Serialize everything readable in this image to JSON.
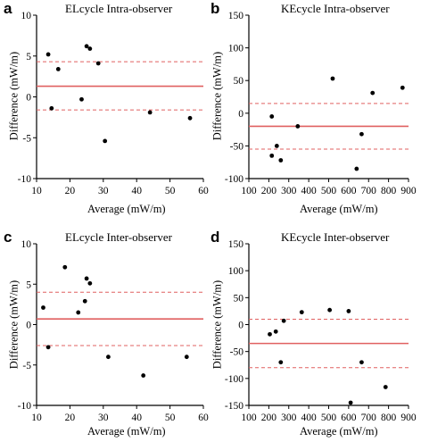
{
  "panels": [
    {
      "letter": "a",
      "title": "ELcycle Intra-observer",
      "xlabel": "Average (mW/m)",
      "ylabel": "Difference (mW/m)"
    },
    {
      "letter": "b",
      "title": "KEcycle Intra-observer",
      "xlabel": "Average (mW/m)",
      "ylabel": "Difference (mW/m)"
    },
    {
      "letter": "c",
      "title": "ELcycle Inter-observer",
      "xlabel": "Average (mW/m)",
      "ylabel": "Difference (mW/m)"
    },
    {
      "letter": "d",
      "title": "KEcycle Inter-observer",
      "xlabel": "Average (mW/m)",
      "ylabel": "Difference (mW/m)"
    }
  ],
  "colors": {
    "points": "#000000",
    "mean_line": "#e06060",
    "limit_line": "#e06060",
    "axis": "#000000"
  },
  "chart_data": [
    {
      "type": "scatter",
      "title": "ELcycle Intra-observer",
      "xlabel": "Average (mW/m)",
      "ylabel": "Difference (mW/m)",
      "xlim": [
        10,
        60
      ],
      "ylim": [
        -10,
        10
      ],
      "xticks": [
        10,
        20,
        30,
        40,
        50,
        60
      ],
      "yticks": [
        -10,
        -5,
        0,
        5,
        10
      ],
      "mean": 1.3,
      "upper_limit": 4.3,
      "lower_limit": -1.6,
      "points": [
        [
          13.5,
          5.2
        ],
        [
          14.5,
          -1.4
        ],
        [
          16.5,
          3.4
        ],
        [
          23.5,
          -0.3
        ],
        [
          25,
          6.2
        ],
        [
          26,
          5.9
        ],
        [
          28.5,
          4.1
        ],
        [
          30.5,
          -5.4
        ],
        [
          44,
          -1.9
        ],
        [
          56,
          -2.6
        ]
      ]
    },
    {
      "type": "scatter",
      "title": "KEcycle Intra-observer",
      "xlabel": "Average (mW/m)",
      "ylabel": "Difference (mW/m)",
      "xlim": [
        100,
        900
      ],
      "ylim": [
        -100,
        150
      ],
      "xticks": [
        100,
        200,
        300,
        400,
        500,
        600,
        700,
        800,
        900
      ],
      "yticks": [
        -100,
        -50,
        0,
        50,
        100,
        150
      ],
      "mean": -20,
      "upper_limit": 15,
      "lower_limit": -55,
      "points": [
        [
          215,
          -5
        ],
        [
          215,
          -65
        ],
        [
          240,
          -50
        ],
        [
          260,
          -72
        ],
        [
          345,
          -20
        ],
        [
          520,
          53
        ],
        [
          640,
          -85
        ],
        [
          665,
          -32
        ],
        [
          720,
          31
        ],
        [
          870,
          39
        ]
      ]
    },
    {
      "type": "scatter",
      "title": "ELcycle Inter-observer",
      "xlabel": "Average (mW/m)",
      "ylabel": "Difference (mW/m)",
      "xlim": [
        10,
        60
      ],
      "ylim": [
        -10,
        10
      ],
      "xticks": [
        10,
        20,
        30,
        40,
        50,
        60
      ],
      "yticks": [
        -10,
        -5,
        0,
        5,
        10
      ],
      "mean": 0.7,
      "upper_limit": 4.0,
      "lower_limit": -2.6,
      "points": [
        [
          12,
          2.1
        ],
        [
          13.5,
          -2.8
        ],
        [
          18.5,
          7.1
        ],
        [
          22.5,
          1.5
        ],
        [
          24.5,
          2.9
        ],
        [
          25,
          5.7
        ],
        [
          26,
          5.1
        ],
        [
          31.5,
          -4.0
        ],
        [
          42,
          -6.3
        ],
        [
          55,
          -4.0
        ]
      ]
    },
    {
      "type": "scatter",
      "title": "KEcycle Inter-observer",
      "xlabel": "Average (mW/m)",
      "ylabel": "Difference (mW/m)",
      "xlim": [
        100,
        900
      ],
      "ylim": [
        -150,
        150
      ],
      "xticks": [
        100,
        200,
        300,
        400,
        500,
        600,
        700,
        800,
        900
      ],
      "yticks": [
        -150,
        -100,
        -50,
        0,
        50,
        100,
        150
      ],
      "mean": -35,
      "upper_limit": 10,
      "lower_limit": -80,
      "points": [
        [
          205,
          -18
        ],
        [
          235,
          -13
        ],
        [
          260,
          -70
        ],
        [
          275,
          7
        ],
        [
          365,
          23
        ],
        [
          505,
          27
        ],
        [
          600,
          25
        ],
        [
          610,
          -145
        ],
        [
          665,
          -70
        ],
        [
          785,
          -116
        ]
      ]
    }
  ]
}
